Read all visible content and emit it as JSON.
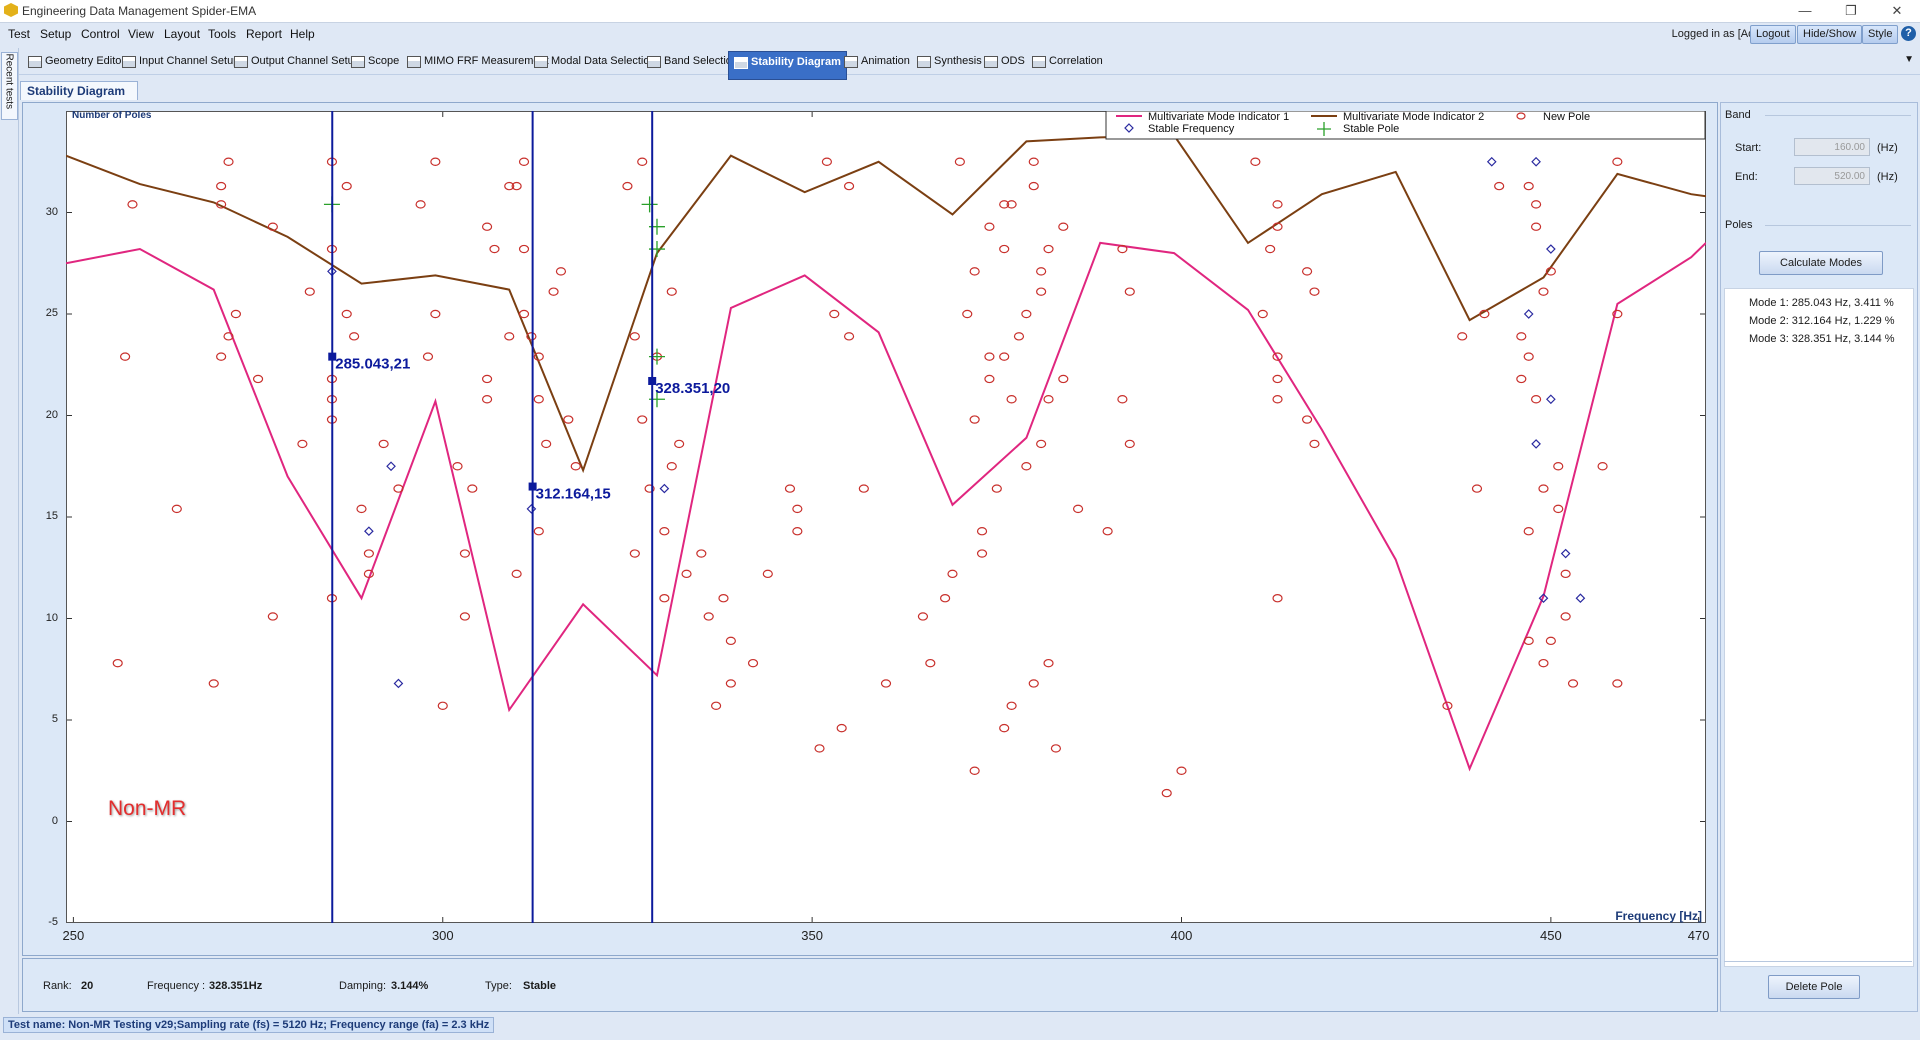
{
  "app": {
    "title": "Engineering Data Management Spider-EMA"
  },
  "window_controls": {
    "minimize": "—",
    "restore": "❐",
    "close": "✕"
  },
  "menu": [
    "Test",
    "Setup",
    "Control",
    "View",
    "Layout",
    "Tools",
    "Report",
    "Help"
  ],
  "session": {
    "logged_in": "Logged in as [Admin]",
    "logout": "Logout",
    "hide_show": "Hide/Show",
    "style": "Style",
    "help": "?"
  },
  "left_strip": {
    "recent": "Recent tests"
  },
  "tabs": [
    {
      "label": "Geometry Editor",
      "active": false
    },
    {
      "label": "Input Channel Setup",
      "active": false
    },
    {
      "label": "Output Channel Setup",
      "active": false
    },
    {
      "label": "Scope",
      "active": false
    },
    {
      "label": "MIMO FRF Measurement",
      "active": false
    },
    {
      "label": "Modal Data Selection",
      "active": false
    },
    {
      "label": "Band Selection",
      "active": false
    },
    {
      "label": "Stability Diagram",
      "active": true
    },
    {
      "label": "Animation",
      "active": false
    },
    {
      "label": "Synthesis",
      "active": false
    },
    {
      "label": "ODS",
      "active": false
    },
    {
      "label": "Correlation",
      "active": false
    }
  ],
  "doc_tab": "Stability Diagram",
  "overlay_label": "Non-MR",
  "chart_data": {
    "type": "scatter",
    "ylabel": "Number of Poles",
    "xlabel": "Frequency [Hz]",
    "xlim": [
      249,
      471
    ],
    "ylim": [
      -5,
      35
    ],
    "x_ticks": [
      "250",
      "300",
      "350",
      "400",
      "450",
      "470"
    ],
    "x_tick_values": [
      250,
      300,
      350,
      400,
      450,
      470
    ],
    "y_ticks": [
      30,
      25,
      20,
      15,
      10,
      5,
      0,
      -5
    ],
    "legend_position": "top-right",
    "colors": {
      "mmif1": "#e0267f",
      "mmif2": "#7b3f12",
      "new_pole": "#c8302c",
      "stable_freq": "#2a2aa0",
      "stable_pole": "#2aa02a",
      "cursor": "#0c1a9c"
    },
    "legend": [
      {
        "label": "Multivariate Mode Indicator 1",
        "marker": "line",
        "color": "#e0267f"
      },
      {
        "label": "Multivariate Mode Indicator 2",
        "marker": "line",
        "color": "#7b3f12"
      },
      {
        "label": "New Pole",
        "marker": "circle",
        "color": "#c8302c"
      },
      {
        "label": "Stable Frequency",
        "marker": "diamond",
        "color": "#2a2aa0"
      },
      {
        "label": "Stable Pole",
        "marker": "plus",
        "color": "#2aa02a"
      }
    ],
    "series": [
      {
        "name": "Multivariate Mode Indicator 1",
        "x": [
          249,
          259,
          269,
          279,
          289,
          299,
          309,
          319,
          329,
          339,
          349,
          359,
          369,
          379,
          389,
          399,
          409,
          419,
          429,
          439,
          449,
          459,
          469,
          471
        ],
        "y": [
          27.5,
          28.2,
          26.2,
          17,
          11,
          20.7,
          5.5,
          10.7,
          7.2,
          25.3,
          26.9,
          24.1,
          15.6,
          18.9,
          28.5,
          28,
          25.2,
          19.3,
          12.9,
          2.6,
          11.1,
          25.5,
          27.8,
          28.5
        ]
      },
      {
        "name": "Multivariate Mode Indicator 2",
        "x": [
          249,
          259,
          269,
          279,
          289,
          299,
          309,
          319,
          329,
          339,
          349,
          359,
          369,
          379,
          389,
          399,
          409,
          419,
          429,
          439,
          449,
          459,
          469,
          471
        ],
        "y": [
          32.8,
          31.4,
          30.5,
          28.8,
          26.5,
          26.9,
          26.2,
          17.3,
          28,
          32.8,
          31,
          32.5,
          29.9,
          33.5,
          33.7,
          33.8,
          28.5,
          30.9,
          32,
          24.7,
          26.8,
          31.9,
          30.9,
          30.8
        ]
      },
      {
        "name": "New Pole",
        "points": [
          [
            258,
            30.4
          ],
          [
            257,
            22.9
          ],
          [
            256,
            7.8
          ],
          [
            264,
            15.4
          ],
          [
            271,
            32.5
          ],
          [
            270,
            31.3
          ],
          [
            270,
            30.4
          ],
          [
            272,
            25
          ],
          [
            271,
            23.9
          ],
          [
            270,
            22.9
          ],
          [
            269,
            6.8
          ],
          [
            277,
            29.3
          ],
          [
            275,
            21.8
          ],
          [
            277,
            10.1
          ],
          [
            282,
            26.1
          ],
          [
            281,
            18.6
          ],
          [
            285,
            32.5
          ],
          [
            285,
            28.2
          ],
          [
            285,
            21.8
          ],
          [
            285,
            20.8
          ],
          [
            285,
            19.8
          ],
          [
            285,
            11
          ],
          [
            287,
            31.3
          ],
          [
            287,
            25
          ],
          [
            288,
            23.9
          ],
          [
            289,
            15.4
          ],
          [
            290,
            13.2
          ],
          [
            290,
            12.2
          ],
          [
            292,
            18.6
          ],
          [
            294,
            16.4
          ],
          [
            297,
            30.4
          ],
          [
            298,
            22.9
          ],
          [
            299,
            25
          ],
          [
            299,
            32.5
          ],
          [
            300,
            5.7
          ],
          [
            302,
            17.5
          ],
          [
            303,
            13.2
          ],
          [
            303,
            10.1
          ],
          [
            304,
            16.4
          ],
          [
            306,
            29.3
          ],
          [
            306,
            21.8
          ],
          [
            306,
            20.8
          ],
          [
            307,
            28.2
          ],
          [
            309,
            31.3
          ],
          [
            310,
            31.3
          ],
          [
            309,
            23.9
          ],
          [
            311,
            32.5
          ],
          [
            311,
            28.2
          ],
          [
            310,
            12.2
          ],
          [
            311,
            25
          ],
          [
            312,
            23.9
          ],
          [
            313,
            22.9
          ],
          [
            313,
            20.8
          ],
          [
            313,
            14.3
          ],
          [
            314,
            18.6
          ],
          [
            315,
            26.1
          ],
          [
            316,
            27.1
          ],
          [
            317,
            19.8
          ],
          [
            318,
            17.5
          ],
          [
            325,
            31.3
          ],
          [
            326,
            23.9
          ],
          [
            327,
            32.5
          ],
          [
            326,
            13.2
          ],
          [
            327,
            19.8
          ],
          [
            328,
            16.4
          ],
          [
            329,
            22.9
          ],
          [
            330,
            11
          ],
          [
            330,
            14.3
          ],
          [
            331,
            17.5
          ],
          [
            331,
            26.1
          ],
          [
            332,
            18.6
          ],
          [
            333,
            12.2
          ],
          [
            335,
            13.2
          ],
          [
            336,
            10.1
          ],
          [
            337,
            5.7
          ],
          [
            338,
            11
          ],
          [
            339,
            8.9
          ],
          [
            339,
            6.8
          ],
          [
            342,
            7.8
          ],
          [
            344,
            12.2
          ],
          [
            347,
            16.4
          ],
          [
            348,
            15.4
          ],
          [
            348,
            14.3
          ],
          [
            351,
            3.6
          ],
          [
            352,
            32.5
          ],
          [
            353,
            25
          ],
          [
            355,
            31.3
          ],
          [
            355,
            23.9
          ],
          [
            354,
            4.6
          ],
          [
            357,
            16.4
          ],
          [
            360,
            6.8
          ],
          [
            365,
            10.1
          ],
          [
            366,
            7.8
          ],
          [
            368,
            11
          ],
          [
            369,
            12.2
          ],
          [
            370,
            32.5
          ],
          [
            371,
            25
          ],
          [
            372,
            27.1
          ],
          [
            372,
            19.8
          ],
          [
            372,
            2.5
          ],
          [
            373,
            14.3
          ],
          [
            373,
            13.2
          ],
          [
            374,
            29.3
          ],
          [
            374,
            22.9
          ],
          [
            375,
            16.4
          ],
          [
            374,
            21.8
          ],
          [
            376,
            28.2
          ],
          [
            376,
            30.4
          ],
          [
            376,
            4.6
          ],
          [
            377,
            30.4
          ],
          [
            376,
            22.9
          ],
          [
            377,
            5.7
          ],
          [
            377,
            20.8
          ],
          [
            378,
            23.9
          ],
          [
            379,
            25
          ],
          [
            379,
            17.5
          ],
          [
            380,
            6.8
          ],
          [
            380,
            32.5
          ],
          [
            380,
            31.3
          ],
          [
            381,
            27.1
          ],
          [
            381,
            26.1
          ],
          [
            381,
            18.6
          ],
          [
            382,
            20.8
          ],
          [
            382,
            28.2
          ],
          [
            382,
            7.8
          ],
          [
            383,
            3.6
          ],
          [
            384,
            29.3
          ],
          [
            384,
            21.8
          ],
          [
            386,
            15.4
          ],
          [
            390,
            14.3
          ],
          [
            392,
            20.8
          ],
          [
            392,
            28.2
          ],
          [
            393,
            26.1
          ],
          [
            393,
            18.6
          ],
          [
            398,
            1.4
          ],
          [
            400,
            2.5
          ],
          [
            410,
            32.5
          ],
          [
            411,
            25
          ],
          [
            413,
            30.4
          ],
          [
            413,
            29.3
          ],
          [
            412,
            28.2
          ],
          [
            413,
            22.9
          ],
          [
            413,
            21.8
          ],
          [
            413,
            20.8
          ],
          [
            413,
            11
          ],
          [
            417,
            27.1
          ],
          [
            418,
            26.1
          ],
          [
            417,
            19.8
          ],
          [
            418,
            18.6
          ],
          [
            436,
            5.7
          ],
          [
            438,
            23.9
          ],
          [
            440,
            16.4
          ],
          [
            441,
            25
          ],
          [
            443,
            31.3
          ],
          [
            447,
            31.3
          ],
          [
            446,
            23.9
          ],
          [
            446,
            21.8
          ],
          [
            447,
            22.9
          ],
          [
            447,
            14.3
          ],
          [
            447,
            8.9
          ],
          [
            448,
            30.4
          ],
          [
            448,
            29.3
          ],
          [
            449,
            26.1
          ],
          [
            448,
            20.8
          ],
          [
            449,
            16.4
          ],
          [
            450,
            27.1
          ],
          [
            450,
            8.9
          ],
          [
            449,
            7.8
          ],
          [
            451,
            17.5
          ],
          [
            451,
            15.4
          ],
          [
            452,
            12.2
          ],
          [
            452,
            10.1
          ],
          [
            453,
            6.8
          ],
          [
            457,
            17.5
          ],
          [
            459,
            32.5
          ],
          [
            459,
            25
          ],
          [
            459,
            6.8
          ]
        ]
      },
      {
        "name": "Stable Frequency",
        "points": [
          [
            285,
            27.1
          ],
          [
            290,
            14.3
          ],
          [
            293,
            17.5
          ],
          [
            294,
            6.8
          ],
          [
            312,
            15.4
          ],
          [
            330,
            16.4
          ],
          [
            442,
            32.5
          ],
          [
            448,
            32.5
          ],
          [
            447,
            25
          ],
          [
            450,
            28.2
          ],
          [
            450,
            20.8
          ],
          [
            448,
            18.6
          ],
          [
            449,
            11
          ],
          [
            452,
            13.2
          ],
          [
            454,
            11
          ]
        ]
      },
      {
        "name": "Stable Pole",
        "points": [
          [
            285,
            30.4
          ],
          [
            328,
            30.4
          ],
          [
            329,
            29.3
          ],
          [
            329,
            28.2
          ],
          [
            329,
            22.9
          ],
          [
            329,
            20.8
          ]
        ]
      }
    ],
    "cursors": [
      {
        "x": 285.043,
        "label": "285.043,21",
        "marker_y": 22.9
      },
      {
        "x": 312.164,
        "label": "312.164,15",
        "marker_y": 16.5
      },
      {
        "x": 328.351,
        "label": "328.351,20",
        "marker_y": 21.7
      }
    ]
  },
  "status": {
    "rank_label": "Rank:",
    "rank": "20",
    "frequency_label": "Frequency :",
    "frequency": "328.351Hz",
    "damping_label": "Damping:",
    "damping": "3.144%",
    "type_label": "Type:",
    "type": "Stable"
  },
  "band": {
    "title": "Band",
    "start_label": "Start:",
    "start": "160.00",
    "end_label": "End:",
    "end": "520.00",
    "unit": "(Hz)"
  },
  "poles": {
    "title": "Poles",
    "calculate": "Calculate Modes",
    "modes": [
      "Mode 1: 285.043 Hz, 3.411 %",
      "Mode 2: 312.164 Hz, 1.229 %",
      "Mode 3: 328.351 Hz, 3.144 %"
    ],
    "delete": "Delete Pole"
  },
  "footer": "Test name: Non-MR Testing v29;Sampling rate (fs) = 5120 Hz; Frequency range (fa) = 2.3 kHz"
}
